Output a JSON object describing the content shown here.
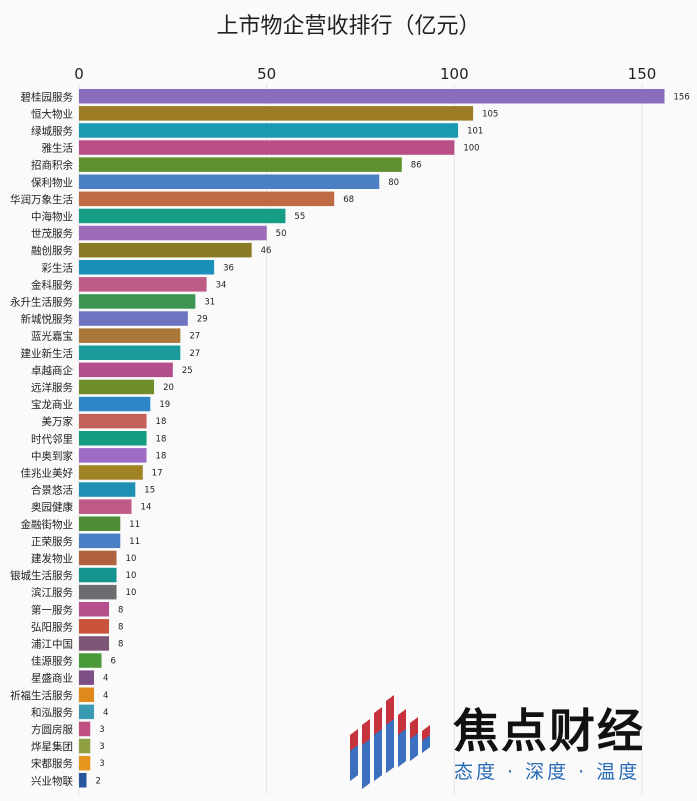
{
  "chart_data": {
    "type": "bar",
    "orientation": "horizontal",
    "title": "上市物企营收排行（亿元）",
    "xticks": [
      0,
      50,
      100,
      150
    ],
    "xlim": [
      0,
      158
    ],
    "grid": true,
    "categories": [
      "碧桂园服务",
      "恒大物业",
      "绿城服务",
      "雅生活",
      "招商积余",
      "保利物业",
      "华润万象生活",
      "中海物业",
      "世茂服务",
      "融创服务",
      "彩生活",
      "金科服务",
      "永升生活服务",
      "新城悦服务",
      "蓝光嘉宝",
      "建业新生活",
      "卓越商企",
      "远洋服务",
      "宝龙商业",
      "美万家",
      "时代邻里",
      "中奥到家",
      "佳兆业美好",
      "合景悠活",
      "奥园健康",
      "金融街物业",
      "正荣服务",
      "建发物业",
      "银城生活服务",
      "滨江服务",
      "第一服务",
      "弘阳服务",
      "浦江中国",
      "佳源服务",
      "星盛商业",
      "祈福生活服务",
      "和泓服务",
      "方圆房服",
      "烨星集团",
      "宋都服务",
      "兴业物联"
    ],
    "values": [
      156,
      105,
      101,
      100,
      86,
      80,
      68,
      55,
      50,
      46,
      36,
      34,
      31,
      29,
      27,
      27,
      25,
      20,
      19,
      18,
      18,
      18,
      17,
      15,
      14,
      11,
      11,
      10,
      10,
      10,
      8,
      8,
      8,
      6,
      4,
      4,
      4,
      3,
      3,
      3,
      2
    ],
    "colors": [
      "#8a6dbf",
      "#9d7b24",
      "#1a9ab0",
      "#b94f86",
      "#5f8f2f",
      "#4a7fc4",
      "#bf6a44",
      "#159d86",
      "#9d6bb8",
      "#8a7a25",
      "#1a8fb9",
      "#be5b84",
      "#3d9352",
      "#6e74c2",
      "#a9773a",
      "#1a9a9a",
      "#b24e8c",
      "#6f8e2b",
      "#2d86c6",
      "#c46259",
      "#149c80",
      "#9d6cc4",
      "#a18326",
      "#1f8fb3",
      "#bf5a86",
      "#4f8e36",
      "#4a7fc6",
      "#b0623e",
      "#15948f",
      "#6b6b70",
      "#b44f8c",
      "#c8523a",
      "#7e5777",
      "#4a9a3a",
      "#7d4f87",
      "#e08a1e",
      "#3b9ab4",
      "#be4f80",
      "#8ea042",
      "#e6961e",
      "#2a56a0"
    ]
  },
  "brand": {
    "name": "焦点财经",
    "slogan": "态度 · 深度 · 温度"
  }
}
